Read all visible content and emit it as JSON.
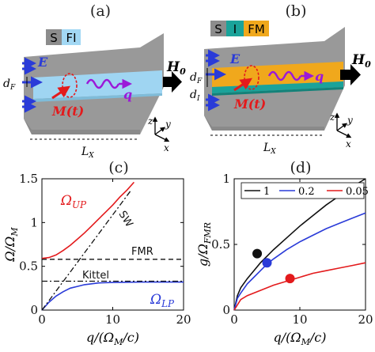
{
  "panels": {
    "a": {
      "label": "(a)",
      "legend": [
        {
          "text": "S",
          "color": "#8c8c8c"
        },
        {
          "text": "FI",
          "color": "#a3d8f4"
        }
      ],
      "labels": {
        "E": "E",
        "H": "H",
        "H_sub": "0",
        "dF": "d",
        "dF_sub": "F",
        "M": "M(t)",
        "q": "q",
        "Lx": "L",
        "Lx_sub": "X",
        "z": "z",
        "y": "y",
        "x": "x"
      }
    },
    "b": {
      "label": "(b)",
      "legend": [
        {
          "text": "S",
          "color": "#8c8c8c"
        },
        {
          "text": "I",
          "color": "#1aa39a"
        },
        {
          "text": "FM",
          "color": "#f0a81c"
        }
      ],
      "labels": {
        "E": "E",
        "H": "H",
        "H_sub": "0",
        "dF": "d",
        "dF_sub": "F",
        "dI": "d",
        "dI_sub": "I",
        "M": "M(t)",
        "q": "q",
        "Lx": "L",
        "Lx_sub": "X",
        "z": "z",
        "y": "y",
        "x": "x"
      }
    },
    "c": {
      "label": "(c)"
    },
    "d": {
      "label": "(d)"
    }
  },
  "chart_data": [
    {
      "type": "line",
      "panel": "c",
      "xlabel": "q/(Ω_M/c)",
      "ylabel": "Ω/Ω_M",
      "xlim": [
        0,
        20
      ],
      "ylim": [
        0,
        1.5
      ],
      "xticks": [
        "0",
        "10",
        "20"
      ],
      "yticks": [
        "0",
        "0.5",
        "1",
        "1.5"
      ],
      "grid": false,
      "series": [
        {
          "name": "Ω_UP",
          "color": "#e31a1c",
          "style": "solid",
          "x": [
            0,
            1,
            2,
            3,
            4,
            5,
            6,
            7,
            8,
            9,
            10,
            11,
            12,
            13
          ],
          "y": [
            0.59,
            0.6,
            0.63,
            0.68,
            0.74,
            0.81,
            0.88,
            0.96,
            1.04,
            1.12,
            1.2,
            1.29,
            1.37,
            1.46
          ]
        },
        {
          "name": "Ω_LP",
          "color": "#2a3bd8",
          "style": "solid",
          "x": [
            0,
            1,
            2,
            3,
            4,
            5,
            6,
            7,
            8,
            10,
            12,
            14,
            16,
            18,
            20
          ],
          "y": [
            0,
            0.09,
            0.16,
            0.21,
            0.25,
            0.27,
            0.29,
            0.3,
            0.31,
            0.315,
            0.318,
            0.32,
            0.32,
            0.32,
            0.32
          ]
        },
        {
          "name": "SW",
          "color": "#111111",
          "style": "dashdot",
          "x": [
            0,
            12.5
          ],
          "y": [
            0,
            1.36
          ]
        },
        {
          "name": "FMR",
          "color": "#111111",
          "style": "dashed",
          "x": [
            0,
            20
          ],
          "y": [
            0.58,
            0.58
          ]
        },
        {
          "name": "Kittel",
          "color": "#111111",
          "style": "dashdot",
          "x": [
            0,
            20
          ],
          "y": [
            0.33,
            0.33
          ]
        }
      ],
      "annotations": [
        {
          "text": "Ω",
          "sub": "UP",
          "color": "#e31a1c"
        },
        {
          "text": "Ω",
          "sub": "LP",
          "color": "#2a3bd8"
        },
        {
          "text": "SW",
          "color": "#111111"
        },
        {
          "text": "FMR",
          "color": "#111111"
        },
        {
          "text": "Kittel",
          "color": "#111111"
        }
      ]
    },
    {
      "type": "line",
      "panel": "d",
      "xlabel": "q/(Ω_M/c)",
      "ylabel": "g/Ω_FMR",
      "xlim": [
        0,
        20
      ],
      "ylim": [
        0,
        1
      ],
      "xticks": [
        "0",
        "10",
        "20"
      ],
      "yticks": [
        "0",
        "0.5",
        "1"
      ],
      "grid": false,
      "legend_position": "top",
      "series": [
        {
          "name": "1",
          "color": "#111111",
          "x": [
            0,
            0.5,
            1,
            2,
            3,
            4,
            6,
            8,
            10,
            12,
            14,
            16,
            18,
            20
          ],
          "y": [
            0,
            0.11,
            0.17,
            0.24,
            0.3,
            0.36,
            0.46,
            0.55,
            0.64,
            0.72,
            0.8,
            0.87,
            0.94,
            1.0
          ]
        },
        {
          "name": "0.2",
          "color": "#2a3bd8",
          "x": [
            0,
            0.5,
            1,
            2,
            3,
            4,
            5,
            6,
            8,
            10,
            12,
            14,
            16,
            18,
            20
          ],
          "y": [
            0,
            0.09,
            0.13,
            0.2,
            0.25,
            0.3,
            0.35,
            0.39,
            0.46,
            0.52,
            0.57,
            0.62,
            0.66,
            0.7,
            0.74
          ]
        },
        {
          "name": "0.05",
          "color": "#e31a1c",
          "x": [
            0,
            1,
            2,
            4,
            6,
            8,
            10,
            12,
            14,
            16,
            18,
            20
          ],
          "y": [
            0,
            0.08,
            0.11,
            0.15,
            0.19,
            0.22,
            0.25,
            0.28,
            0.3,
            0.32,
            0.34,
            0.36
          ]
        }
      ],
      "markers": [
        {
          "x": 3.5,
          "y": 0.43,
          "color": "#111111"
        },
        {
          "x": 5.0,
          "y": 0.36,
          "color": "#2a3bd8"
        },
        {
          "x": 8.5,
          "y": 0.24,
          "color": "#e31a1c"
        }
      ]
    }
  ]
}
